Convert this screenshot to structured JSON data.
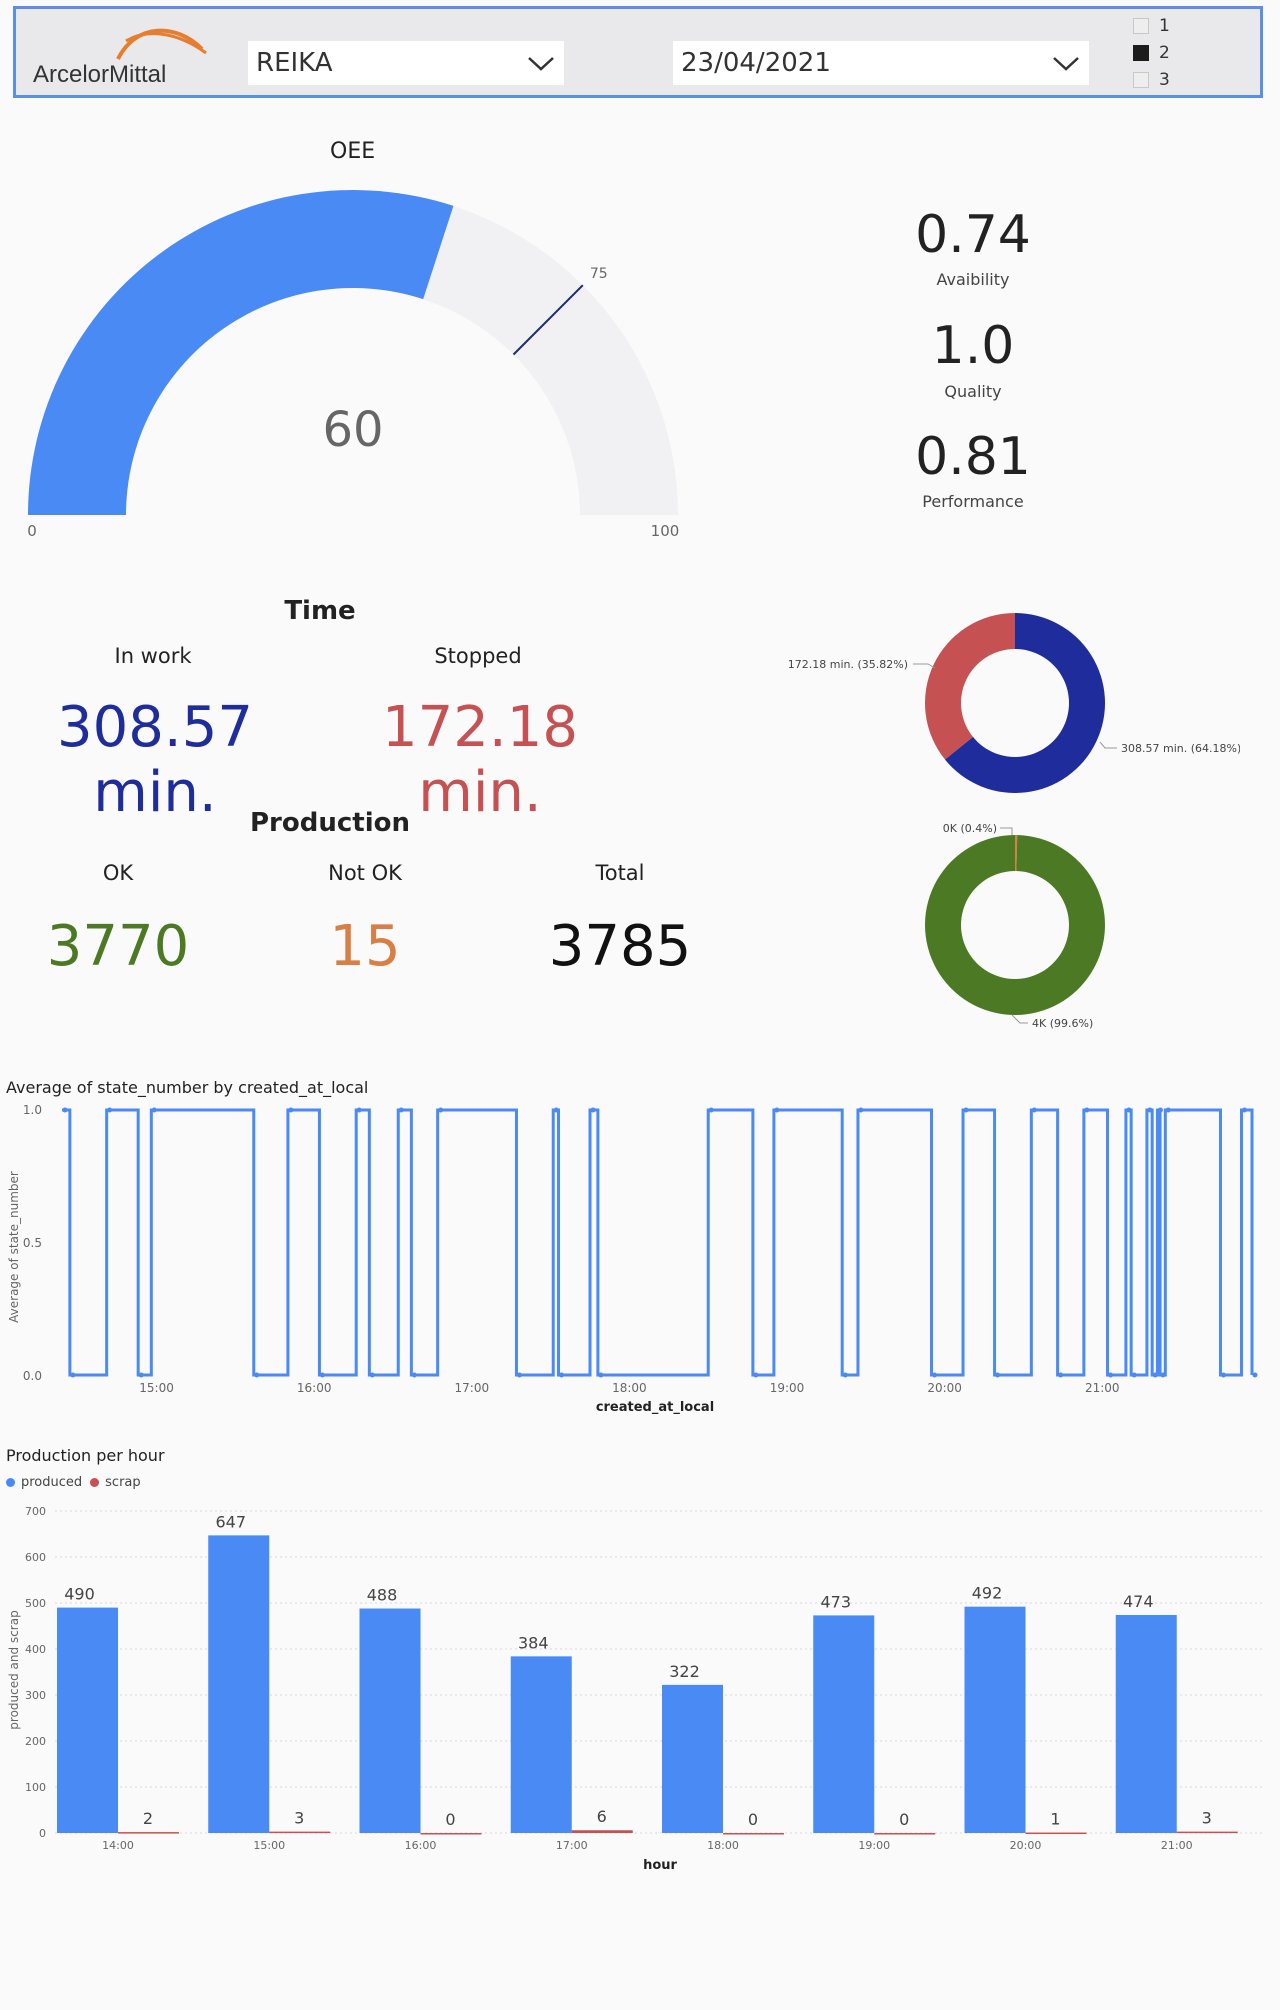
{
  "header": {
    "logo_text": "ArcelorMittal",
    "machine_select": "REIKA",
    "date_select": "23/04/2021",
    "shifts": [
      {
        "label": "1",
        "checked": false
      },
      {
        "label": "2",
        "checked": true
      },
      {
        "label": "3",
        "checked": false
      }
    ]
  },
  "oee": {
    "title": "OEE",
    "value": 60,
    "display": "60",
    "min": 0,
    "min_label": "0",
    "max": 100,
    "max_label": "100",
    "target": 75,
    "target_label": "75",
    "fill_color": "#4a8af4",
    "track_color": "#f1f0f3"
  },
  "metrics": [
    {
      "value": "0.74",
      "label": "Avaibility"
    },
    {
      "value": "1.0",
      "label": "Quality"
    },
    {
      "value": "0.81",
      "label": "Performance"
    }
  ],
  "time": {
    "title": "Time",
    "in_work_label": "In work",
    "in_work_value": "308.57 min.",
    "stopped_label": "Stopped",
    "stopped_value": "172.18 min.",
    "in_work_color": "#1f2d9c",
    "stopped_color": "#c55152"
  },
  "production": {
    "title": "Production",
    "ok_label": "OK",
    "ok_value": "3770",
    "notok_label": "Not OK",
    "notok_value": "15",
    "total_label": "Total",
    "total_value": "3785",
    "ok_color": "#4c7a24",
    "notok_color": "#d97e45"
  },
  "time_donut": {
    "slices": [
      {
        "value": 308.57,
        "label": "308.57 min. (64.18%)",
        "color": "#1f2d9c"
      },
      {
        "value": 172.18,
        "label": "172.18 min. (35.82%)",
        "color": "#c55152"
      }
    ]
  },
  "prod_donut": {
    "slices": [
      {
        "value": 15,
        "label": "0K (0.4%)",
        "color": "#d97e45"
      },
      {
        "value": 3770,
        "label": "4K (99.6%)",
        "color": "#4c7a24"
      }
    ]
  },
  "state_chart": {
    "title": "Average of state_number by created_at_local",
    "xlabel": "created_at_local",
    "ylabel": "Average of state_number",
    "yticks": [
      "0.0",
      "0.5",
      "1.0"
    ],
    "xticks": [
      "15:00",
      "16:00",
      "17:00",
      "18:00",
      "19:00",
      "20:00",
      "21:00"
    ],
    "line_color": "#4a8af4",
    "x_start_hour": 14.4,
    "x_end_hour": 21.95,
    "transitions": [
      [
        "14:24",
        1
      ],
      [
        "14:27",
        0
      ],
      [
        "14:41",
        1
      ],
      [
        "14:53",
        0
      ],
      [
        "14:58",
        1
      ],
      [
        "15:37",
        0
      ],
      [
        "15:50",
        1
      ],
      [
        "16:02",
        0
      ],
      [
        "16:16",
        1
      ],
      [
        "16:21",
        0
      ],
      [
        "16:32",
        1
      ],
      [
        "16:37",
        0
      ],
      [
        "16:47",
        1
      ],
      [
        "17:17",
        0
      ],
      [
        "17:31",
        1
      ],
      [
        "17:33",
        0
      ],
      [
        "17:45",
        1
      ],
      [
        "17:48",
        0
      ],
      [
        "18:30",
        1
      ],
      [
        "18:47",
        0
      ],
      [
        "18:55",
        1
      ],
      [
        "19:21",
        0
      ],
      [
        "19:27",
        1
      ],
      [
        "19:55",
        0
      ],
      [
        "20:07",
        1
      ],
      [
        "20:19",
        0
      ],
      [
        "20:33",
        1
      ],
      [
        "20:43",
        0
      ],
      [
        "20:53",
        1
      ],
      [
        "21:02",
        0
      ],
      [
        "21:09",
        1
      ],
      [
        "21:11",
        0
      ],
      [
        "21:17",
        1
      ],
      [
        "21:19",
        0
      ],
      [
        "21:21",
        1
      ],
      [
        "21:22",
        0
      ],
      [
        "21:24",
        1
      ],
      [
        "21:45",
        0
      ],
      [
        "21:53",
        1
      ],
      [
        "21:57",
        0
      ]
    ]
  },
  "chart_data": {
    "type": "bar",
    "title": "Production per hour",
    "xlabel": "hour",
    "ylabel": "produced and scrap",
    "ylim": [
      0,
      700
    ],
    "yticks": [
      "0",
      "100",
      "200",
      "300",
      "400",
      "500",
      "600",
      "700"
    ],
    "categories": [
      "14:00",
      "15:00",
      "16:00",
      "17:00",
      "18:00",
      "19:00",
      "20:00",
      "21:00"
    ],
    "series": [
      {
        "name": "produced",
        "color": "#4a8af4",
        "values": [
          490,
          647,
          488,
          384,
          322,
          473,
          492,
          474
        ]
      },
      {
        "name": "scrap",
        "color": "#c55152",
        "values": [
          2,
          3,
          0,
          6,
          0,
          0,
          1,
          3
        ]
      }
    ],
    "legend_position": "top-left",
    "grid": true
  }
}
